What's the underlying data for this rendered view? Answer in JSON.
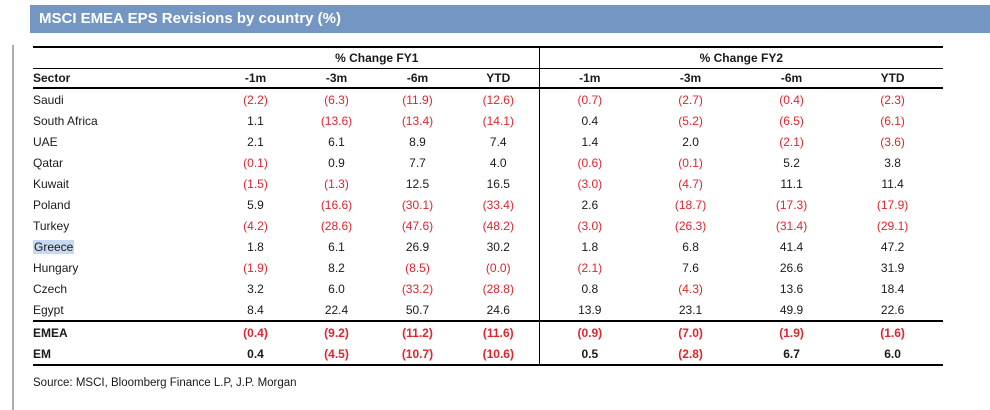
{
  "title": "MSCI EMEA EPS Revisions by country (%)",
  "table": {
    "group_headers": {
      "fy1": "% Change FY1",
      "fy2": "% Change FY2"
    },
    "sector_header": "Sector",
    "period_headers": [
      "-1m",
      "-3m",
      "-6m",
      "YTD"
    ],
    "rows": [
      {
        "sector": "Saudi",
        "fy1": [
          "(2.2)",
          "(6.3)",
          "(11.9)",
          "(12.6)"
        ],
        "fy2": [
          "(0.7)",
          "(2.7)",
          "(0.4)",
          "(2.3)"
        ]
      },
      {
        "sector": "South Africa",
        "fy1": [
          "1.1",
          "(13.6)",
          "(13.4)",
          "(14.1)"
        ],
        "fy2": [
          "0.4",
          "(5.2)",
          "(6.5)",
          "(6.1)"
        ]
      },
      {
        "sector": "UAE",
        "fy1": [
          "2.1",
          "6.1",
          "8.9",
          "7.4"
        ],
        "fy2": [
          "1.4",
          "2.0",
          "(2.1)",
          "(3.6)"
        ]
      },
      {
        "sector": "Qatar",
        "fy1": [
          "(0.1)",
          "0.9",
          "7.7",
          "4.0"
        ],
        "fy2": [
          "(0.6)",
          "(0.1)",
          "5.2",
          "3.8"
        ]
      },
      {
        "sector": "Kuwait",
        "fy1": [
          "(1.5)",
          "(1.3)",
          "12.5",
          "16.5"
        ],
        "fy2": [
          "(3.0)",
          "(4.7)",
          "11.1",
          "11.4"
        ]
      },
      {
        "sector": "Poland",
        "fy1": [
          "5.9",
          "(16.6)",
          "(30.1)",
          "(33.4)"
        ],
        "fy2": [
          "2.6",
          "(18.7)",
          "(17.3)",
          "(17.9)"
        ]
      },
      {
        "sector": "Turkey",
        "fy1": [
          "(4.2)",
          "(28.6)",
          "(47.6)",
          "(48.2)"
        ],
        "fy2": [
          "(3.0)",
          "(26.3)",
          "(31.4)",
          "(29.1)"
        ]
      },
      {
        "sector": "Greece",
        "highlighted": true,
        "fy1": [
          "1.8",
          "6.1",
          "26.9",
          "30.2"
        ],
        "fy2": [
          "1.8",
          "6.8",
          "41.4",
          "47.2"
        ]
      },
      {
        "sector": "Hungary",
        "fy1": [
          "(1.9)",
          "8.2",
          "(8.5)",
          "(0.0)"
        ],
        "fy2": [
          "(2.1)",
          "7.6",
          "26.6",
          "31.9"
        ]
      },
      {
        "sector": "Czech",
        "fy1": [
          "3.2",
          "6.0",
          "(33.2)",
          "(28.8)"
        ],
        "fy2": [
          "0.8",
          "(4.3)",
          "13.6",
          "18.4"
        ]
      },
      {
        "sector": "Egypt",
        "fy1": [
          "8.4",
          "22.4",
          "50.7",
          "24.6"
        ],
        "fy2": [
          "13.9",
          "23.1",
          "49.9",
          "22.6"
        ]
      },
      {
        "sector": "EMEA",
        "total": true,
        "fy1": [
          "(0.4)",
          "(9.2)",
          "(11.2)",
          "(11.6)"
        ],
        "fy2": [
          "(0.9)",
          "(7.0)",
          "(1.9)",
          "(1.6)"
        ]
      },
      {
        "sector": "EM",
        "total": true,
        "fy1": [
          "0.4",
          "(4.5)",
          "(10.7)",
          "(10.6)"
        ],
        "fy2": [
          "0.5",
          "(2.8)",
          "6.7",
          "6.0"
        ]
      }
    ]
  },
  "source": "Source: MSCI, Bloomberg Finance L.P, J.P. Morgan",
  "colors": {
    "header_bar": "#7396C3",
    "negative_red": "#E0252E",
    "text_black": "#1A1A1A",
    "greece_highlight": "#C6D9F0",
    "left_rule_gray": "#ADADAD"
  }
}
